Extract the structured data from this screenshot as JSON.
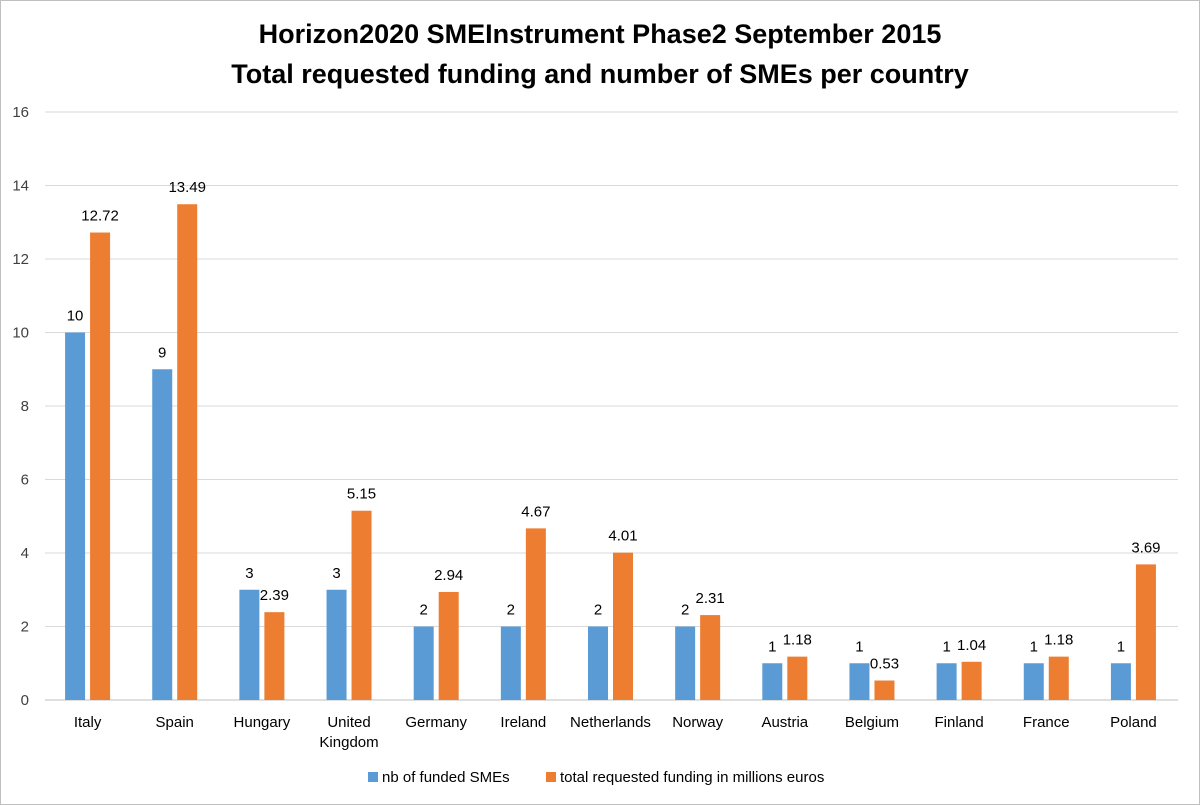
{
  "chart_data": {
    "type": "bar",
    "title_lines": [
      "Horizon2020 SMEInstrument Phase2 September 2015",
      "Total requested funding and number of SMEs per country"
    ],
    "categories": [
      [
        "Italy"
      ],
      [
        "Spain"
      ],
      [
        "Hungary"
      ],
      [
        "United",
        "Kingdom"
      ],
      [
        "Germany"
      ],
      [
        "Ireland"
      ],
      [
        "Netherlands"
      ],
      [
        "Norway"
      ],
      [
        "Austria"
      ],
      [
        "Belgium"
      ],
      [
        "Finland"
      ],
      [
        "France"
      ],
      [
        "Poland"
      ]
    ],
    "series": [
      {
        "name": "nb of funded SMEs",
        "color": "#5b9bd5",
        "values": [
          10,
          9,
          3,
          3,
          2,
          2,
          2,
          2,
          1,
          1,
          1,
          1,
          1
        ],
        "labels": [
          "10",
          "9",
          "3",
          "3",
          "2",
          "2",
          "2",
          "2",
          "1",
          "1",
          "1",
          "1",
          "1"
        ]
      },
      {
        "name": "total requested funding in millions euros",
        "color": "#ed7d31",
        "values": [
          12.72,
          13.49,
          2.39,
          5.15,
          2.94,
          4.67,
          4.01,
          2.31,
          1.18,
          0.53,
          1.04,
          1.18,
          3.69
        ],
        "labels": [
          "12.72",
          "13.49",
          "2.39",
          "5.15",
          "2.94",
          "4.67",
          "4.01",
          "2.31",
          "1.18",
          "0.53",
          "1.04",
          "1.18",
          "3.69"
        ]
      }
    ],
    "y_ticks": [
      "0",
      "2",
      "4",
      "6",
      "8",
      "10",
      "12",
      "14",
      "16"
    ],
    "ylim": [
      0,
      16
    ],
    "grid": true,
    "legend_position": "bottom"
  }
}
